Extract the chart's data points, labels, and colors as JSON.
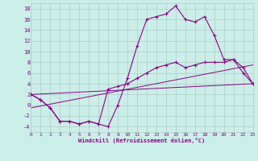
{
  "xlabel": "Windchill (Refroidissement éolien,°C)",
  "xlim": [
    0,
    23
  ],
  "ylim": [
    -5,
    19
  ],
  "yticks": [
    -4,
    -2,
    0,
    2,
    4,
    6,
    8,
    10,
    12,
    14,
    16,
    18
  ],
  "xticks": [
    0,
    1,
    2,
    3,
    4,
    5,
    6,
    7,
    8,
    9,
    10,
    11,
    12,
    13,
    14,
    15,
    16,
    17,
    18,
    19,
    20,
    21,
    22,
    23
  ],
  "bg_color": "#cceee8",
  "line_color": "#880088",
  "grid_color": "#aacccc",
  "line1_x": [
    0,
    1,
    2,
    3,
    4,
    5,
    6,
    7,
    8,
    9,
    10,
    11,
    12,
    13,
    14,
    15,
    16,
    17,
    18,
    19,
    20,
    21,
    22,
    23
  ],
  "line1_y": [
    2,
    1,
    -0.5,
    -3,
    -3,
    -3.5,
    -3,
    -3.5,
    -4,
    0,
    5,
    11,
    16,
    16.5,
    17,
    18.5,
    16,
    15.5,
    16.5,
    13,
    8.5,
    8.5,
    6,
    4
  ],
  "line2_x": [
    0,
    1,
    2,
    3,
    4,
    5,
    6,
    7,
    8,
    9,
    10,
    11,
    12,
    13,
    14,
    15,
    16,
    17,
    18,
    19,
    20,
    21,
    22,
    23
  ],
  "line2_y": [
    2,
    1,
    -0.5,
    -3,
    -3,
    -3.5,
    -3,
    -3.5,
    3,
    3.5,
    4,
    5,
    6,
    7,
    7.5,
    8,
    7,
    7.5,
    8,
    8,
    8,
    8.5,
    7,
    4
  ],
  "line3_x": [
    0,
    23
  ],
  "line3_y": [
    2,
    4
  ],
  "line4_x": [
    0,
    23
  ],
  "line4_y": [
    -0.5,
    7.5
  ]
}
